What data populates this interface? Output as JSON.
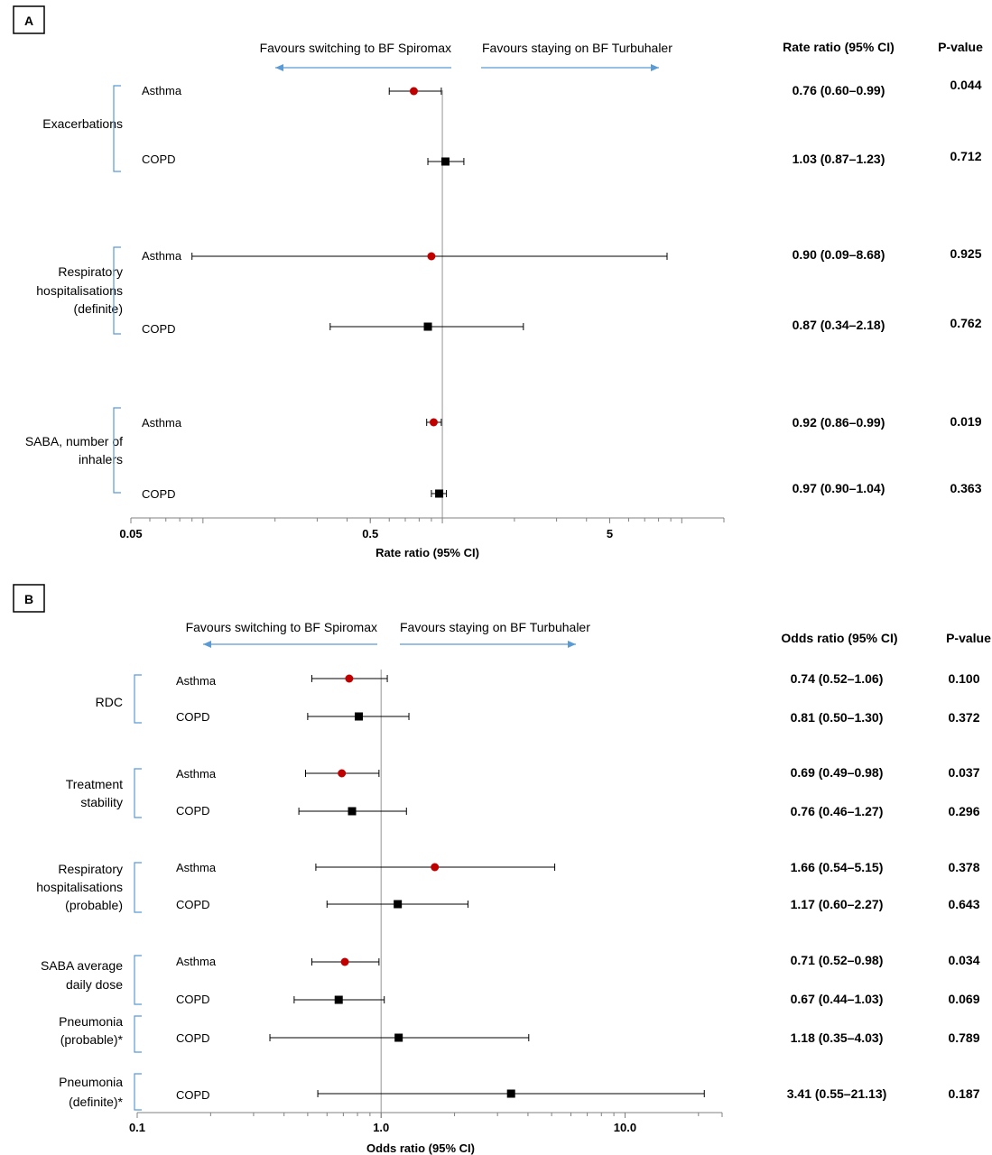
{
  "colors": {
    "asthma_marker": "#c00000",
    "copd_marker": "#000000",
    "arrow": "#5b9bd5",
    "bracket": "#5b9bd5",
    "reference_line": "#a6a6a6",
    "axis": "#808080"
  },
  "chart_data": [
    {
      "type": "forest",
      "panel_label": "A",
      "scale": "log",
      "xlim": [
        0.05,
        15
      ],
      "reference": 1,
      "xlabel": "Rate ratio (95% CI)",
      "ticks": [
        0.05,
        0.5,
        5
      ],
      "tick_labels": [
        "0.05",
        "0.5",
        "5"
      ],
      "favours_left": "Favours switching to BF Spiromax",
      "favours_right": "Favours staying on BF Turbuhaler",
      "estimate_header": "Rate ratio (95% CI)",
      "pvalue_header": "P-value",
      "groups": [
        {
          "name": "Exacerbations",
          "rows": [
            {
              "label": "Asthma",
              "est": 0.76,
              "lo": 0.6,
              "hi": 0.99,
              "ci_text": "0.76 (0.60–0.99)",
              "p": "0.044"
            },
            {
              "label": "COPD",
              "est": 1.03,
              "lo": 0.87,
              "hi": 1.23,
              "ci_text": "1.03 (0.87–1.23)",
              "p": "0.712"
            }
          ]
        },
        {
          "name": "Respiratory hospitalisations (definite)",
          "rows": [
            {
              "label": "Asthma",
              "est": 0.9,
              "lo": 0.09,
              "hi": 8.68,
              "ci_text": "0.90 (0.09–8.68)",
              "p": "0.925"
            },
            {
              "label": "COPD",
              "est": 0.87,
              "lo": 0.34,
              "hi": 2.18,
              "ci_text": "0.87 (0.34–2.18)",
              "p": "0.762"
            }
          ]
        },
        {
          "name": "SABA, number of inhalers",
          "rows": [
            {
              "label": "Asthma",
              "est": 0.92,
              "lo": 0.86,
              "hi": 0.99,
              "ci_text": "0.92 (0.86–0.99)",
              "p": "0.019"
            },
            {
              "label": "COPD",
              "est": 0.97,
              "lo": 0.9,
              "hi": 1.04,
              "ci_text": "0.97 (0.90–1.04)",
              "p": "0.363"
            }
          ]
        }
      ]
    },
    {
      "type": "forest",
      "panel_label": "B",
      "scale": "log",
      "xlim": [
        0.1,
        25
      ],
      "reference": 1.0,
      "xlabel": "Odds ratio (95% CI)",
      "ticks": [
        0.1,
        1.0,
        10.0
      ],
      "tick_labels": [
        "0.1",
        "1.0",
        "10.0"
      ],
      "favours_left": "Favours switching to BF Spiromax",
      "favours_right": "Favours staying on BF Turbuhaler",
      "estimate_header": "Odds ratio (95% CI)",
      "pvalue_header": "P-value",
      "groups": [
        {
          "name": "RDC",
          "rows": [
            {
              "label": "Asthma",
              "est": 0.74,
              "lo": 0.52,
              "hi": 1.06,
              "ci_text": "0.74 (0.52–1.06)",
              "p": "0.100"
            },
            {
              "label": "COPD",
              "est": 0.81,
              "lo": 0.5,
              "hi": 1.3,
              "ci_text": "0.81 (0.50–1.30)",
              "p": "0.372"
            }
          ]
        },
        {
          "name": "Treatment stability",
          "rows": [
            {
              "label": "Asthma",
              "est": 0.69,
              "lo": 0.49,
              "hi": 0.98,
              "ci_text": "0.69 (0.49–0.98)",
              "p": "0.037"
            },
            {
              "label": "COPD",
              "est": 0.76,
              "lo": 0.46,
              "hi": 1.27,
              "ci_text": "0.76 (0.46–1.27)",
              "p": "0.296"
            }
          ]
        },
        {
          "name": "Respiratory hospitalisations (probable)",
          "rows": [
            {
              "label": "Asthma",
              "est": 1.66,
              "lo": 0.54,
              "hi": 5.15,
              "ci_text": "1.66 (0.54–5.15)",
              "p": "0.378"
            },
            {
              "label": "COPD",
              "est": 1.17,
              "lo": 0.6,
              "hi": 2.27,
              "ci_text": "1.17 (0.60–2.27)",
              "p": "0.643"
            }
          ]
        },
        {
          "name": "SABA average daily dose",
          "rows": [
            {
              "label": "Asthma",
              "est": 0.71,
              "lo": 0.52,
              "hi": 0.98,
              "ci_text": "0.71 (0.52–0.98)",
              "p": "0.034"
            },
            {
              "label": "COPD",
              "est": 0.67,
              "lo": 0.44,
              "hi": 1.03,
              "ci_text": "0.67 (0.44–1.03)",
              "p": "0.069"
            }
          ]
        },
        {
          "name": "Pneumonia (probable)*",
          "rows": [
            {
              "label": "COPD",
              "est": 1.18,
              "lo": 0.35,
              "hi": 4.03,
              "ci_text": "1.18 (0.35–4.03)",
              "p": "0.789"
            }
          ]
        },
        {
          "name": "Pneumonia (definite)*",
          "rows": [
            {
              "label": "COPD",
              "est": 3.41,
              "lo": 0.55,
              "hi": 21.13,
              "ci_text": "3.41 (0.55–21.13)",
              "p": "0.187"
            }
          ]
        }
      ]
    }
  ]
}
